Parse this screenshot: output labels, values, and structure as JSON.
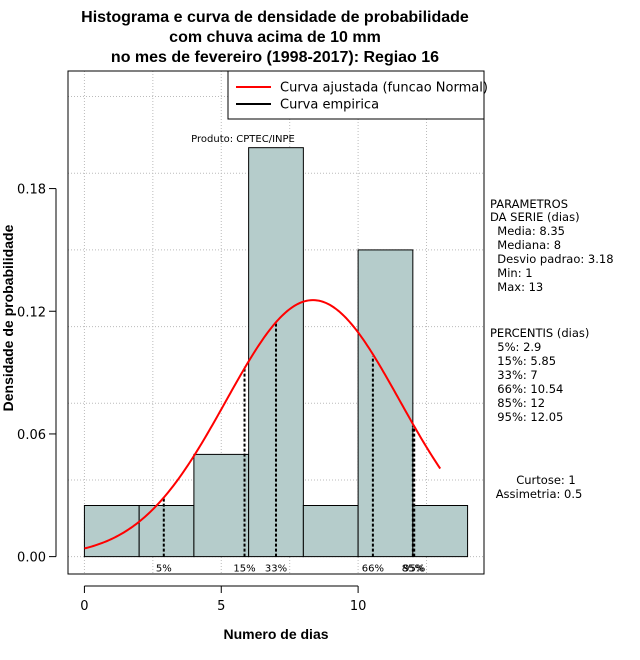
{
  "title_lines": [
    "Histograma e curva de densidade de probabilidade",
    "com chuva acima de 10 mm",
    "no mes de fevereiro (1998-2017): Regiao 16"
  ],
  "product_label": "Produto: CPTEC/INPE",
  "legend": {
    "placement": "top-right",
    "items": [
      {
        "label": "Curva ajustada (funcao Normal)",
        "color": "#ff0000"
      },
      {
        "label": "Curva empirica",
        "color": "#000000"
      }
    ]
  },
  "params_block": [
    "PARAMETROS",
    "DA SERIE (dias)",
    "  Media: 8.35",
    "  Mediana: 8",
    "  Desvio padrao: 3.18",
    "  Min: 1",
    "  Max: 13"
  ],
  "percentis_block": [
    "PERCENTIS (dias)",
    "  5%: 2.9",
    "  15%: 5.85",
    "  33%: 7",
    "  66%: 10.54",
    "  85%: 12",
    "  95%: 12.05"
  ],
  "shape_block": [
    "Curtose: 1",
    "Assimetria: 0.5"
  ],
  "colors": {
    "bar_fill": "#b5cccb",
    "normal_curve": "#ff0000",
    "grid": "#bbbbbb"
  },
  "chart_data": {
    "type": "bar",
    "xlabel": "Numero de dias",
    "ylabel": "Densidade de probabilidade",
    "xlim": [
      -0.6,
      14.6
    ],
    "ylim": [
      -0.0085,
      0.2375
    ],
    "xticks": [
      0,
      5,
      10
    ],
    "yticks": [
      0.0,
      0.06,
      0.12,
      0.18
    ],
    "ytick_labels": [
      "0.00",
      "0.06",
      "0.12",
      "0.18"
    ],
    "grid": true,
    "bins": [
      {
        "x0": 0,
        "x1": 2,
        "density": 0.025
      },
      {
        "x0": 2,
        "x1": 4,
        "density": 0.025
      },
      {
        "x0": 4,
        "x1": 6,
        "density": 0.05
      },
      {
        "x0": 6,
        "x1": 8,
        "density": 0.2
      },
      {
        "x0": 8,
        "x1": 10,
        "density": 0.025
      },
      {
        "x0": 10,
        "x1": 12,
        "density": 0.15
      },
      {
        "x0": 12,
        "x1": 14,
        "density": 0.025
      }
    ],
    "normal_curve": {
      "mean": 8.35,
      "sd": 3.18,
      "x_range": [
        0,
        13
      ]
    },
    "percentile_markers": [
      {
        "label": "5%",
        "x": 2.9,
        "y": 0.029
      },
      {
        "label": "15%",
        "x": 5.85,
        "y": 0.093
      },
      {
        "label": "33%",
        "x": 7,
        "y": 0.114
      },
      {
        "label": "66%",
        "x": 10.54,
        "y": 0.098
      },
      {
        "label": "85%",
        "x": 12,
        "y": 0.064
      },
      {
        "label": "95%",
        "x": 12.05,
        "y": 0.063
      }
    ]
  }
}
